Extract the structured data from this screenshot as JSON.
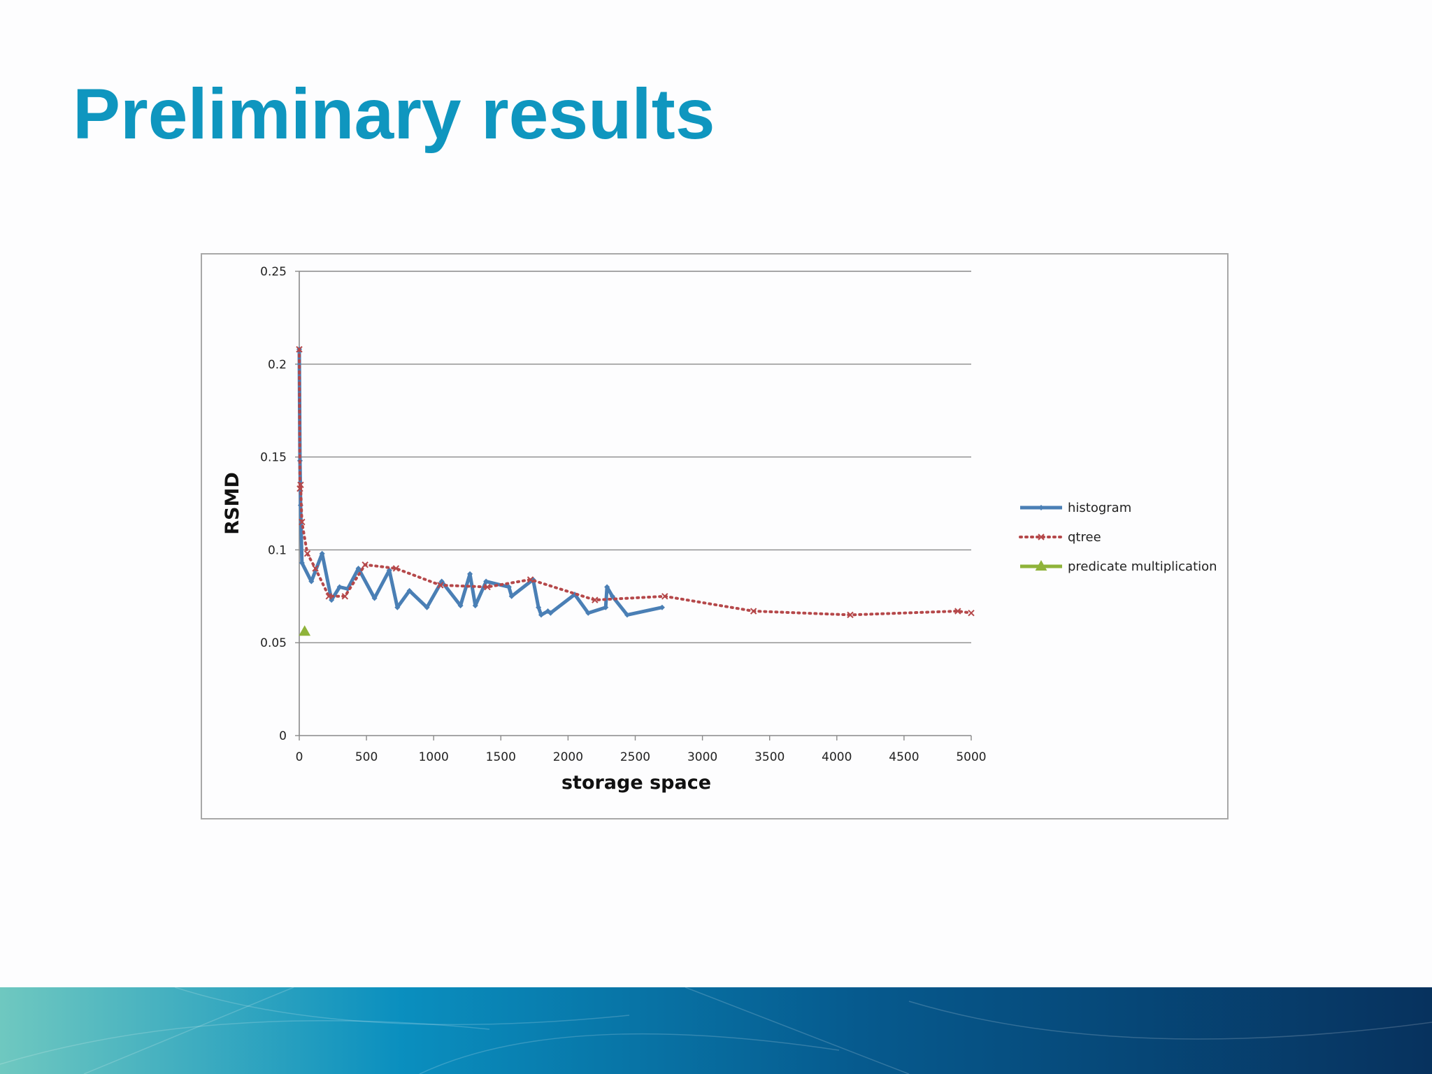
{
  "slide": {
    "title": "Preliminary results"
  },
  "colors": {
    "title": "#0f96bf",
    "histogram": "#4a7fb5",
    "qtree": "#b5484a",
    "predicate_multiplication": "#8fb33a",
    "band_start": "#6fc8c0",
    "band_mid": "#0a8fbf",
    "band_end": "#07325e"
  },
  "chart_data": {
    "type": "line",
    "title": "",
    "xlabel": "storage space",
    "ylabel": "RSMD",
    "xlim": [
      0,
      5000
    ],
    "ylim": [
      0,
      0.25
    ],
    "x_ticks": [
      "0",
      "500",
      "1000",
      "1500",
      "2000",
      "2500",
      "3000",
      "3500",
      "4000",
      "4500",
      "5000"
    ],
    "y_ticks": [
      "0",
      "0.05",
      "0.1",
      "0.15",
      "0.2",
      "0.25"
    ],
    "grid": "horizontal",
    "legend_position": "right",
    "series": [
      {
        "name": "histogram",
        "color": "#4a7fb5",
        "marker": "diamond",
        "points": [
          [
            0,
            0.208
          ],
          [
            5,
            0.148
          ],
          [
            10,
            0.124
          ],
          [
            20,
            0.093
          ],
          [
            90,
            0.083
          ],
          [
            170,
            0.098
          ],
          [
            240,
            0.073
          ],
          [
            300,
            0.08
          ],
          [
            360,
            0.079
          ],
          [
            440,
            0.09
          ],
          [
            560,
            0.074
          ],
          [
            670,
            0.089
          ],
          [
            730,
            0.069
          ],
          [
            820,
            0.078
          ],
          [
            950,
            0.069
          ],
          [
            1060,
            0.083
          ],
          [
            1200,
            0.07
          ],
          [
            1270,
            0.087
          ],
          [
            1310,
            0.07
          ],
          [
            1390,
            0.083
          ],
          [
            1560,
            0.08
          ],
          [
            1580,
            0.075
          ],
          [
            1740,
            0.084
          ],
          [
            1780,
            0.069
          ],
          [
            1800,
            0.065
          ],
          [
            1850,
            0.067
          ],
          [
            1870,
            0.066
          ],
          [
            2050,
            0.076
          ],
          [
            2150,
            0.066
          ],
          [
            2280,
            0.069
          ],
          [
            2290,
            0.08
          ],
          [
            2330,
            0.075
          ],
          [
            2440,
            0.065
          ],
          [
            2700,
            0.069
          ]
        ]
      },
      {
        "name": "qtree",
        "color": "#b5484a",
        "marker": "x",
        "points": [
          [
            0,
            0.208
          ],
          [
            5,
            0.133
          ],
          [
            10,
            0.135
          ],
          [
            20,
            0.115
          ],
          [
            60,
            0.098
          ],
          [
            120,
            0.09
          ],
          [
            220,
            0.075
          ],
          [
            340,
            0.075
          ],
          [
            490,
            0.092
          ],
          [
            720,
            0.09
          ],
          [
            1050,
            0.081
          ],
          [
            1400,
            0.08
          ],
          [
            1720,
            0.084
          ],
          [
            2200,
            0.073
          ],
          [
            2720,
            0.075
          ],
          [
            3380,
            0.067
          ],
          [
            4100,
            0.065
          ],
          [
            4900,
            0.067
          ],
          [
            5000,
            0.066
          ]
        ]
      },
      {
        "name": "predicate multiplication",
        "color": "#8fb33a",
        "marker": "triangle",
        "points": [
          [
            40,
            0.056
          ]
        ]
      }
    ]
  }
}
